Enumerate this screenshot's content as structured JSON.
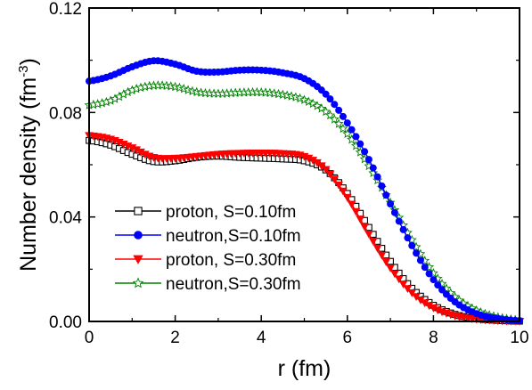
{
  "chart_data": {
    "type": "line",
    "title": "",
    "xlabel": "r (fm)",
    "ylabel": "Number density (fm",
    "ylabel_sup": "-3",
    "ylabel_end": ")",
    "xlim": [
      0,
      10
    ],
    "ylim": [
      0.0,
      0.12
    ],
    "xticks": [
      0,
      2,
      4,
      6,
      8,
      10
    ],
    "xtick_labels": [
      "0",
      "2",
      "4",
      "6",
      "8",
      "10"
    ],
    "yticks": [
      0.0,
      0.04,
      0.08,
      0.12
    ],
    "ytick_labels": [
      "0.00",
      "0.04",
      "0.08",
      "0.12"
    ],
    "grid": false,
    "legend_position": "lower-left",
    "x": [
      0.0,
      0.5,
      1.0,
      1.5,
      2.0,
      2.5,
      3.0,
      3.5,
      4.0,
      4.5,
      5.0,
      5.5,
      6.0,
      6.5,
      7.0,
      7.5,
      8.0,
      8.5,
      9.0,
      9.5,
      10.0
    ],
    "series": [
      {
        "name": "proton,  S=0.10fm",
        "color": "#000000",
        "marker": "open-square",
        "values": [
          0.0693,
          0.0675,
          0.064,
          0.0612,
          0.0615,
          0.0628,
          0.0633,
          0.0628,
          0.0625,
          0.0622,
          0.0615,
          0.058,
          0.049,
          0.036,
          0.023,
          0.0127,
          0.0062,
          0.0027,
          0.0011,
          0.0004,
          0.0001
        ]
      },
      {
        "name": "neutron,S=0.10fm",
        "color": "#0000ff",
        "marker": "filled-circle",
        "values": [
          0.092,
          0.094,
          0.0975,
          0.0998,
          0.0985,
          0.0958,
          0.0955,
          0.0962,
          0.0962,
          0.0952,
          0.093,
          0.087,
          0.076,
          0.062,
          0.045,
          0.029,
          0.016,
          0.0075,
          0.003,
          0.0011,
          0.0003
        ]
      },
      {
        "name": "proton,  S=0.30fm",
        "color": "#ff0000",
        "marker": "filled-triangle-down",
        "values": [
          0.0712,
          0.0698,
          0.0665,
          0.0628,
          0.0625,
          0.0632,
          0.064,
          0.0644,
          0.0645,
          0.0643,
          0.0632,
          0.0582,
          0.0475,
          0.0335,
          0.0205,
          0.011,
          0.0052,
          0.0022,
          0.0009,
          0.0003,
          0.0001
        ]
      },
      {
        "name": "neutron,S=0.30fm",
        "color": "#008000",
        "marker": "open-star",
        "values": [
          0.0828,
          0.0845,
          0.0885,
          0.0903,
          0.0898,
          0.0878,
          0.0872,
          0.0876,
          0.0877,
          0.0868,
          0.0848,
          0.0803,
          0.0718,
          0.0595,
          0.0455,
          0.0312,
          0.0185,
          0.0094,
          0.0042,
          0.0016,
          0.0005
        ]
      }
    ]
  }
}
